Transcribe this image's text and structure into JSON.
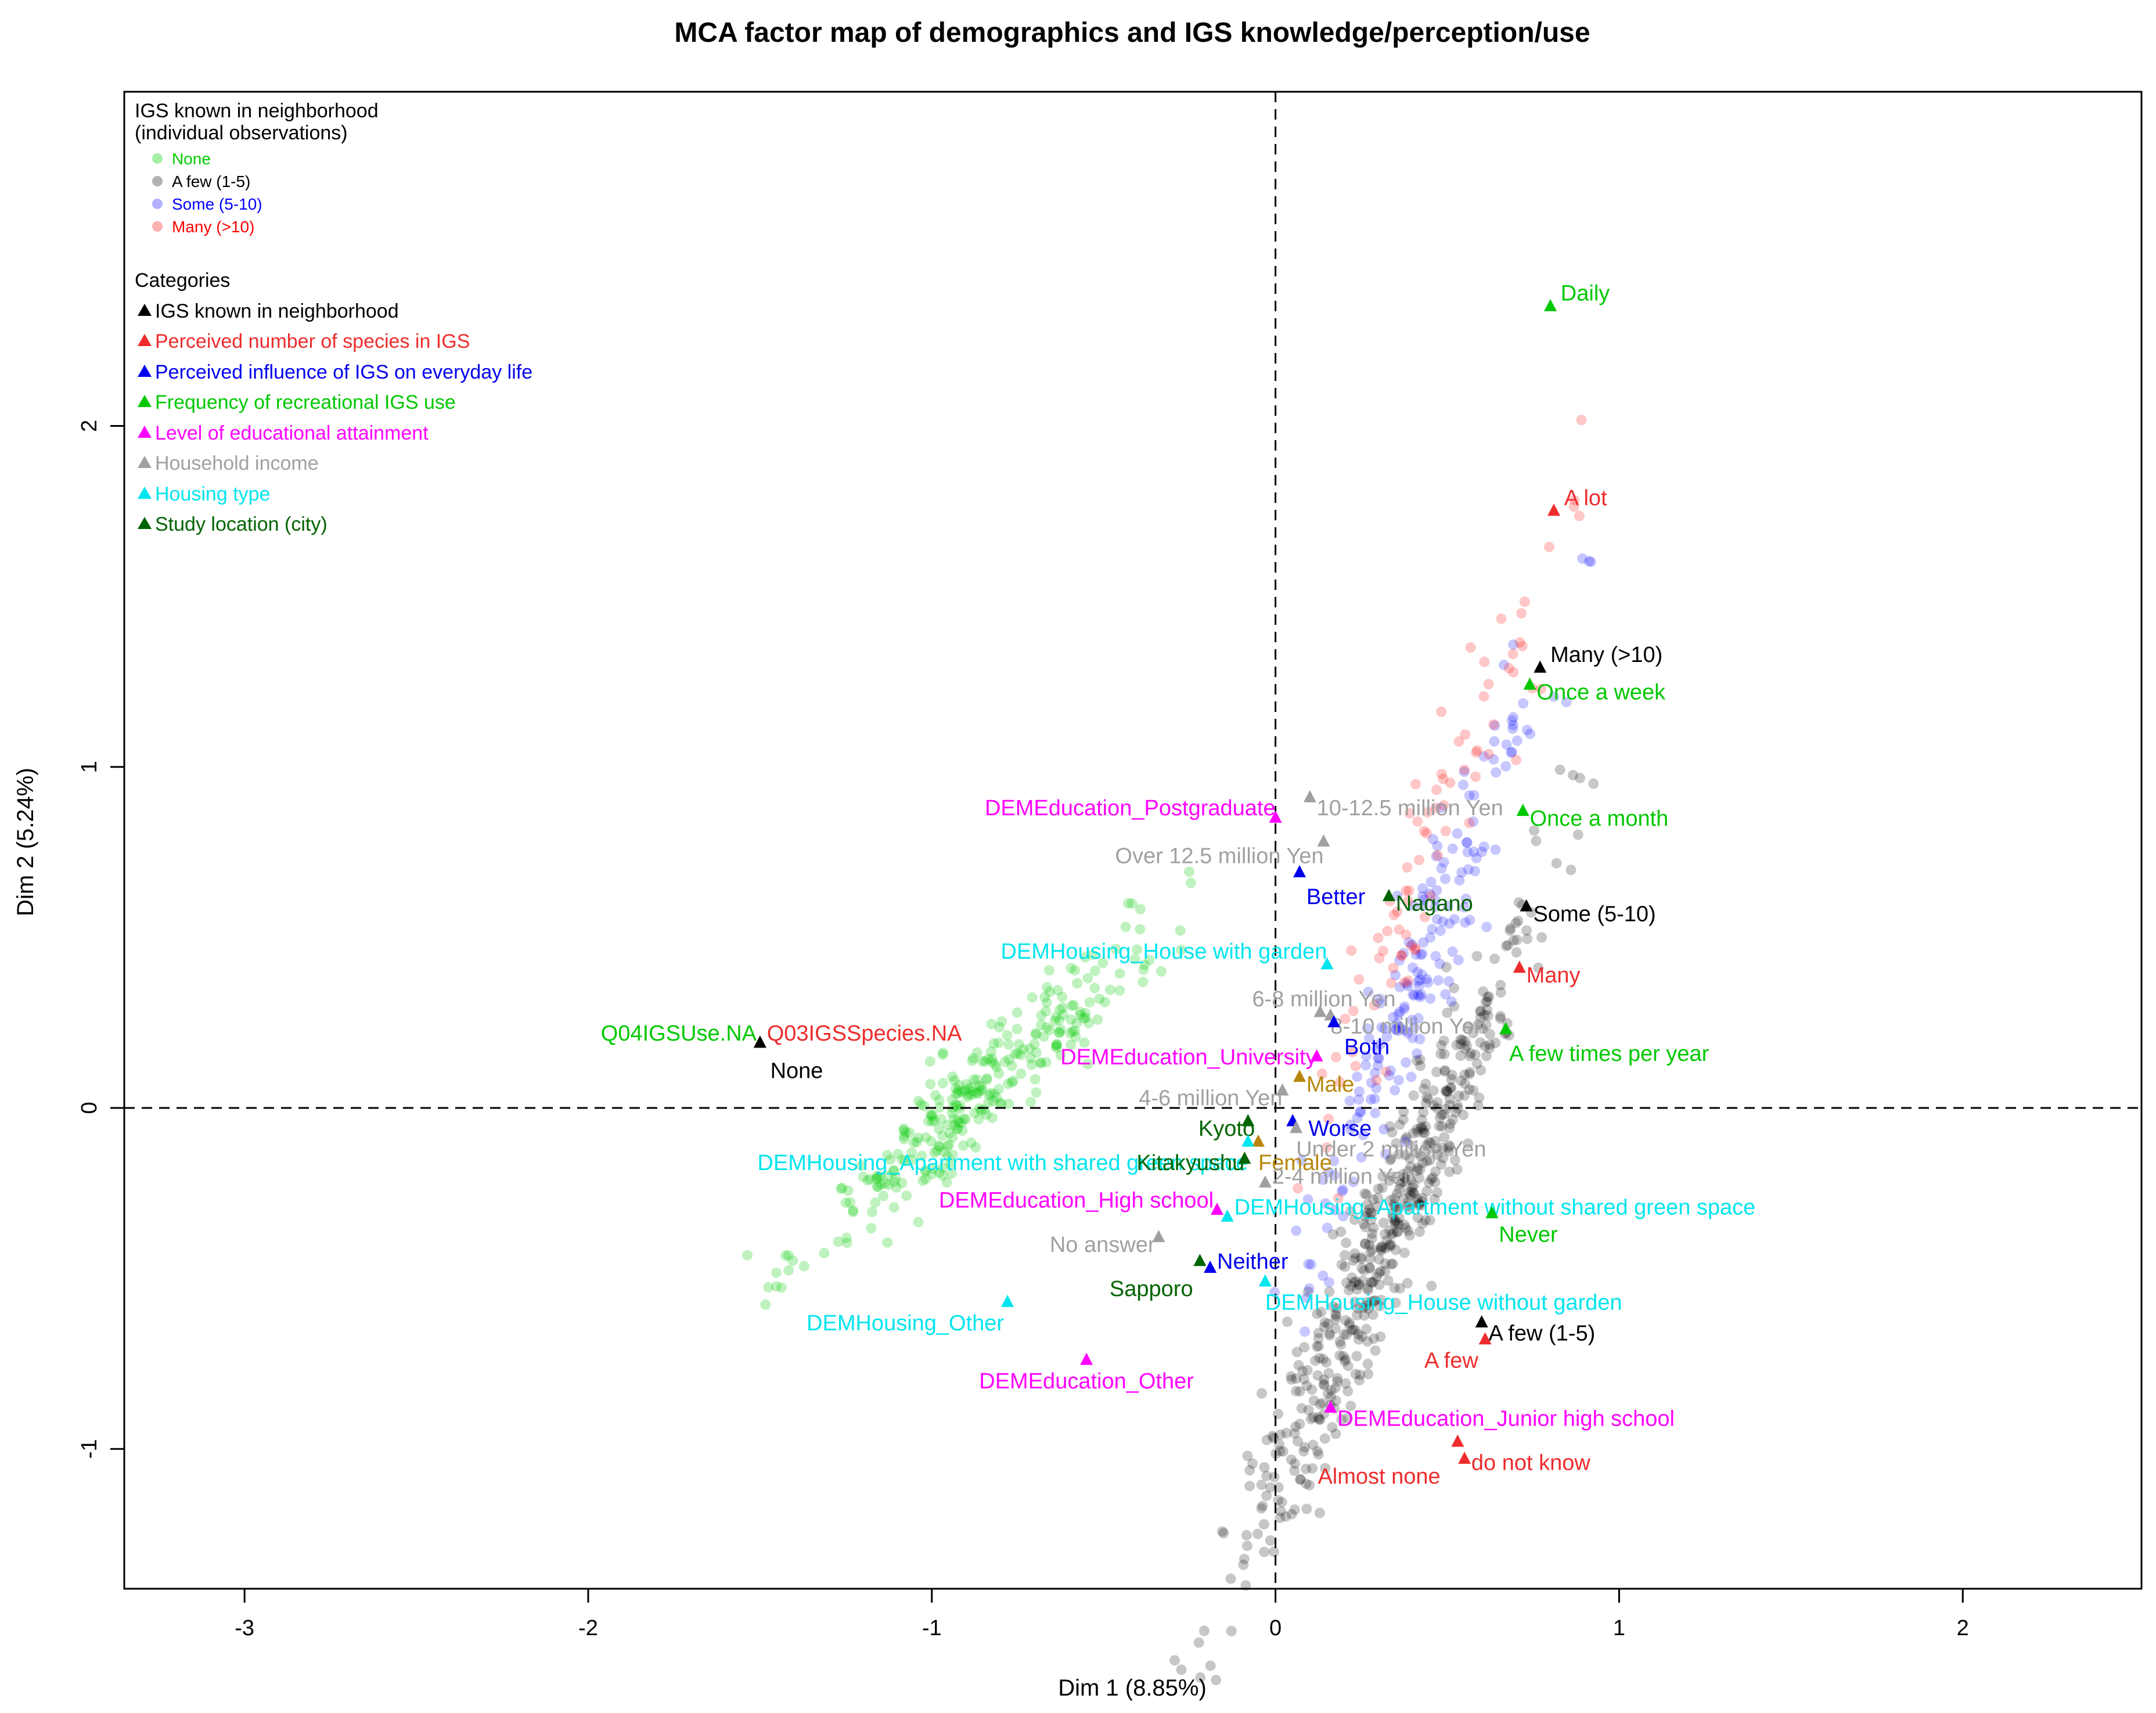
{
  "chart_data": {
    "type": "scatter",
    "title": "MCA factor map of demographics and IGS knowledge/perception/use",
    "xlabel": "Dim 1 (8.85%)",
    "ylabel": "Dim 2 (5.24%)",
    "xlim": [
      -3.35,
      2.52
    ],
    "ylim": [
      -1.41,
      2.98
    ],
    "xticks": [
      -3,
      -2,
      -1,
      0,
      1,
      2
    ],
    "yticks": [
      -1,
      0,
      1,
      2
    ],
    "reference_lines": {
      "x": 0,
      "y": 0,
      "style": "dashed"
    },
    "legend_observations": {
      "title_line1": "IGS known in neighborhood",
      "title_line2": "(individual observations)",
      "items": [
        {
          "label": "None",
          "color": "#00cd00"
        },
        {
          "label": "A few (1-5)",
          "color": "#000000"
        },
        {
          "label": "Some (5-10)",
          "color": "#0000ff"
        },
        {
          "label": "Many (>10)",
          "color": "#ff0000"
        }
      ]
    },
    "legend_categories": {
      "title": "Categories",
      "items": [
        {
          "label": "IGS known in neighborhood",
          "color": "#000000"
        },
        {
          "label": "Perceived number of species in IGS",
          "color": "#ee2c2c"
        },
        {
          "label": "Perceived influence of IGS on everyday life",
          "color": "#0000ee"
        },
        {
          "label": "Frequency of recreational IGS use",
          "color": "#00c800"
        },
        {
          "label": "Level of educational attainment",
          "color": "#ff00ff"
        },
        {
          "label": "Household income",
          "color": "#a0a0a0"
        },
        {
          "label": "Housing type",
          "color": "#00e5ee"
        },
        {
          "label": "Study location (city)",
          "color": "#006400"
        }
      ]
    },
    "categories": [
      {
        "label": "Daily",
        "x": 0.8,
        "y": 2.35,
        "color": "#00c800",
        "anchor": "start",
        "dx": 0.03,
        "dy": 0.04
      },
      {
        "label": "A lot",
        "x": 0.81,
        "y": 1.75,
        "color": "#ee2c2c",
        "anchor": "start",
        "dx": 0.03,
        "dy": 0.04
      },
      {
        "label": "Many (>10)",
        "x": 0.77,
        "y": 1.29,
        "color": "#000000",
        "anchor": "start",
        "dx": 0.03,
        "dy": 0.04
      },
      {
        "label": "Once a week",
        "x": 0.74,
        "y": 1.24,
        "color": "#00c800",
        "anchor": "start",
        "dx": 0.02,
        "dy": -0.02
      },
      {
        "label": "DEMEducation_Postgraduate",
        "x": 0.0,
        "y": 0.85,
        "color": "#ff00ff",
        "anchor": "end",
        "dx": 0.0,
        "dy": 0.03
      },
      {
        "label": "10-12.5 million Yen",
        "x": 0.1,
        "y": 0.91,
        "color": "#a0a0a0",
        "anchor": "start",
        "dx": 0.02,
        "dy": -0.03
      },
      {
        "label": "Over 12.5 million Yen",
        "x": 0.14,
        "y": 0.78,
        "color": "#a0a0a0",
        "anchor": "end",
        "dx": 0.0,
        "dy": -0.04
      },
      {
        "label": "Once a month",
        "x": 0.72,
        "y": 0.87,
        "color": "#00c800",
        "anchor": "start",
        "dx": 0.02,
        "dy": -0.02
      },
      {
        "label": "Better",
        "x": 0.07,
        "y": 0.69,
        "color": "#0000ee",
        "anchor": "start",
        "dx": 0.02,
        "dy": -0.07
      },
      {
        "label": "Nagano",
        "x": 0.33,
        "y": 0.62,
        "color": "#006400",
        "anchor": "start",
        "dx": 0.02,
        "dy": -0.02
      },
      {
        "label": "Some (5-10)",
        "x": 0.73,
        "y": 0.59,
        "color": "#000000",
        "anchor": "start",
        "dx": 0.02,
        "dy": -0.02
      },
      {
        "label": "Many",
        "x": 0.71,
        "y": 0.41,
        "color": "#ee2c2c",
        "anchor": "start",
        "dx": 0.02,
        "dy": -0.02
      },
      {
        "label": "DEMHousing_House with garden",
        "x": 0.15,
        "y": 0.42,
        "color": "#00e5ee",
        "anchor": "end",
        "dx": 0.0,
        "dy": 0.04
      },
      {
        "label": "6-8 million Yen",
        "x": 0.13,
        "y": 0.28,
        "color": "#a0a0a0",
        "anchor": "end",
        "dx": 0.22,
        "dy": 0.04
      },
      {
        "label": "8-10 million Yen",
        "x": 0.16,
        "y": 0.27,
        "color": "#a0a0a0",
        "anchor": "start",
        "dx": 0.0,
        "dy": -0.03
      },
      {
        "label": "Both",
        "x": 0.17,
        "y": 0.25,
        "color": "#0000ee",
        "anchor": "start",
        "dx": 0.03,
        "dy": -0.07
      },
      {
        "label": "A few times per year",
        "x": 0.67,
        "y": 0.23,
        "color": "#00c800",
        "anchor": "start",
        "dx": 0.01,
        "dy": -0.07
      },
      {
        "label": "Q04IGSUse.NA",
        "x": -1.5,
        "y": 0.19,
        "color": "#00c800",
        "anchor": "end",
        "dx": -0.01,
        "dy": 0.03
      },
      {
        "label": "Q03IGSSpecies.NA",
        "x": -1.5,
        "y": 0.19,
        "color": "#ee2c2c",
        "anchor": "start",
        "dx": 0.02,
        "dy": 0.03
      },
      {
        "label": "None",
        "x": -1.5,
        "y": 0.19,
        "color": "#000000",
        "anchor": "start",
        "dx": 0.03,
        "dy": -0.08
      },
      {
        "label": "DEMEducation_University",
        "x": 0.12,
        "y": 0.15,
        "color": "#ff00ff",
        "anchor": "end",
        "dx": 0.0,
        "dy": 0.0
      },
      {
        "label": "Male",
        "x": 0.07,
        "y": 0.09,
        "color": "#b8860b",
        "anchor": "start",
        "dx": 0.02,
        "dy": -0.02
      },
      {
        "label": "4-6 million Yen",
        "x": 0.02,
        "y": 0.05,
        "color": "#a0a0a0",
        "anchor": "end",
        "dx": 0.0,
        "dy": -0.02
      },
      {
        "label": "Kyoto",
        "x": -0.08,
        "y": -0.04,
        "color": "#006400",
        "anchor": "end",
        "dx": 0.02,
        "dy": -0.02
      },
      {
        "label": "Worse",
        "x": 0.05,
        "y": -0.04,
        "color": "#0000ee",
        "anchor": "end",
        "dx": 0.23,
        "dy": -0.02
      },
      {
        "label": "Under 2 million Yen",
        "x": 0.06,
        "y": -0.06,
        "color": "#a0a0a0",
        "anchor": "start",
        "dx": 0.0,
        "dy": -0.06
      },
      {
        "label": "Female",
        "x": -0.05,
        "y": -0.1,
        "color": "#b8860b",
        "anchor": "start",
        "dx": 0.0,
        "dy": -0.06
      },
      {
        "label": "DEMHousing_Apartment with shared green space",
        "x": -0.08,
        "y": -0.1,
        "color": "#00e5ee",
        "anchor": "end",
        "dx": 0.0,
        "dy": -0.06
      },
      {
        "label": "Kitakyushu",
        "x": -0.09,
        "y": -0.15,
        "color": "#006400",
        "anchor": "end",
        "dx": 0.0,
        "dy": -0.01
      },
      {
        "label": "2-4 million Yen",
        "x": -0.03,
        "y": -0.22,
        "color": "#a0a0a0",
        "anchor": "start",
        "dx": 0.02,
        "dy": 0.02
      },
      {
        "label": "DEMEducation_High school",
        "x": -0.17,
        "y": -0.3,
        "color": "#ff00ff",
        "anchor": "end",
        "dx": -0.01,
        "dy": 0.03
      },
      {
        "label": "DEMHousing_Apartment without shared green space",
        "x": -0.14,
        "y": -0.32,
        "color": "#00e5ee",
        "anchor": "start",
        "dx": 0.02,
        "dy": 0.03
      },
      {
        "label": "Never",
        "x": 0.63,
        "y": -0.31,
        "color": "#00c800",
        "anchor": "start",
        "dx": 0.02,
        "dy": -0.06
      },
      {
        "label": "No answer",
        "x": -0.34,
        "y": -0.38,
        "color": "#a0a0a0",
        "anchor": "end",
        "dx": -0.01,
        "dy": -0.02
      },
      {
        "label": "Neither",
        "x": -0.19,
        "y": -0.47,
        "color": "#0000ee",
        "anchor": "start",
        "dx": 0.02,
        "dy": 0.02
      },
      {
        "label": "Sapporo",
        "x": -0.22,
        "y": -0.45,
        "color": "#006400",
        "anchor": "end",
        "dx": -0.02,
        "dy": -0.08
      },
      {
        "label": "DEMHousing_House without garden",
        "x": -0.03,
        "y": -0.51,
        "color": "#00e5ee",
        "anchor": "start",
        "dx": 0.0,
        "dy": -0.06
      },
      {
        "label": "DEMHousing_Other",
        "x": -0.78,
        "y": -0.57,
        "color": "#00e5ee",
        "anchor": "end",
        "dx": -0.01,
        "dy": -0.06
      },
      {
        "label": "A few (1-5)",
        "x": 0.6,
        "y": -0.63,
        "color": "#000000",
        "anchor": "start",
        "dx": 0.02,
        "dy": -0.03
      },
      {
        "label": "A few",
        "x": 0.61,
        "y": -0.68,
        "color": "#ee2c2c",
        "anchor": "end",
        "dx": -0.02,
        "dy": -0.06
      },
      {
        "label": "DEMEducation_Other",
        "x": -0.55,
        "y": -0.74,
        "color": "#ff00ff",
        "anchor": "middle",
        "dx": 0.0,
        "dy": -0.06
      },
      {
        "label": "DEMEducation_Junior high school",
        "x": 0.16,
        "y": -0.88,
        "color": "#ff00ff",
        "anchor": "start",
        "dx": 0.02,
        "dy": -0.03
      },
      {
        "label": "Almost none",
        "x": 0.53,
        "y": -0.98,
        "color": "#ee2c2c",
        "anchor": "end",
        "dx": -0.05,
        "dy": -0.1
      },
      {
        "label": "do not know",
        "x": 0.55,
        "y": -1.03,
        "color": "#ee2c2c",
        "anchor": "start",
        "dx": 0.02,
        "dy": -0.01
      }
    ],
    "observation_clusters": [
      {
        "group": "None",
        "color": "#00cd00",
        "n": 300,
        "cx": -0.86,
        "cy": 0.05,
        "slope": 0.95,
        "spread_along": 0.34,
        "spread_across": 0.06
      },
      {
        "group": "A few (1-5)",
        "color": "#000000",
        "n": 520,
        "cx": 0.33,
        "cy": -0.35,
        "slope": 2.4,
        "spread_along": 0.55,
        "spread_across": 0.055
      },
      {
        "group": "Some (5-10)",
        "color": "#0000ff",
        "n": 190,
        "cx": 0.42,
        "cy": 0.4,
        "slope": 2.6,
        "spread_along": 0.5,
        "spread_across": 0.05
      },
      {
        "group": "Many (>10)",
        "color": "#ff0000",
        "n": 85,
        "cx": 0.47,
        "cy": 0.8,
        "slope": 2.6,
        "spread_along": 0.5,
        "spread_across": 0.05
      }
    ]
  }
}
